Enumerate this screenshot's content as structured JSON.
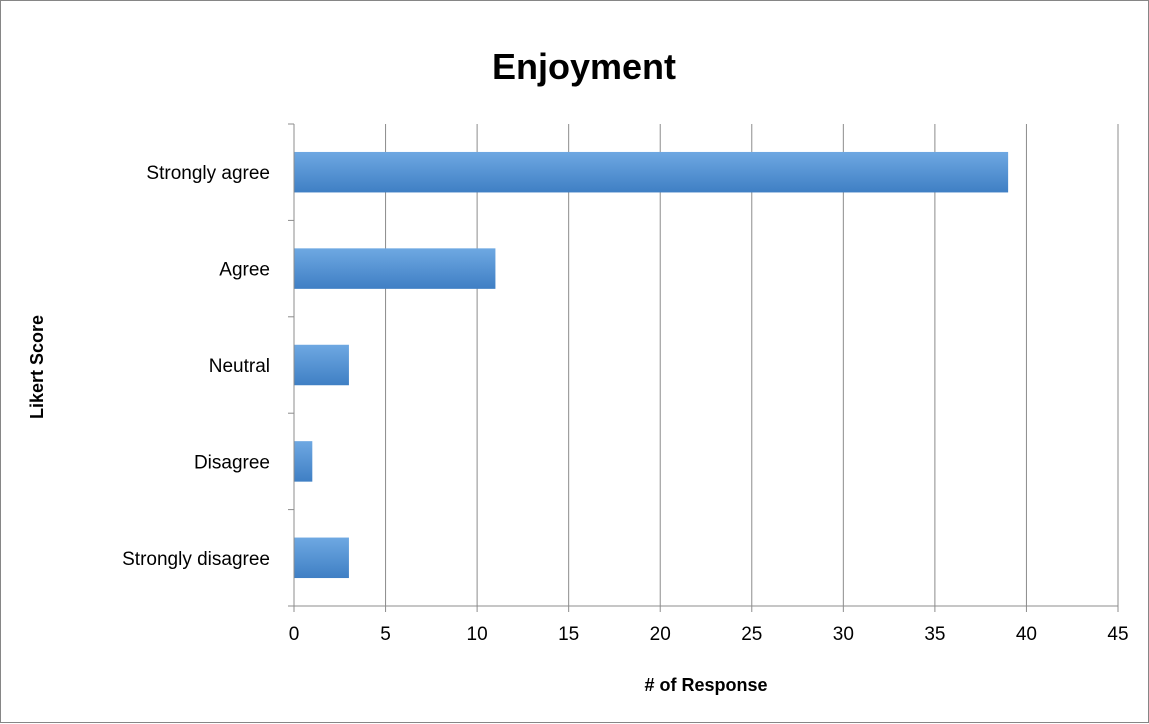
{
  "chart_data": {
    "type": "bar",
    "orientation": "horizontal",
    "title": "Enjoyment",
    "xlabel": "# of Response",
    "ylabel": "Likert Score",
    "categories": [
      "Strongly agree",
      "Agree",
      "Neutral",
      "Disagree",
      "Strongly disagree"
    ],
    "series": [
      {
        "values": [
          39,
          11,
          3,
          1,
          3
        ]
      }
    ],
    "xlim": [
      0,
      45
    ],
    "xticks": [
      "0",
      "5",
      "10",
      "15",
      "20",
      "25",
      "30",
      "35",
      "40",
      "45"
    ],
    "grid": "vertical",
    "legend": "none",
    "bar_color": "#4a8ad0"
  }
}
